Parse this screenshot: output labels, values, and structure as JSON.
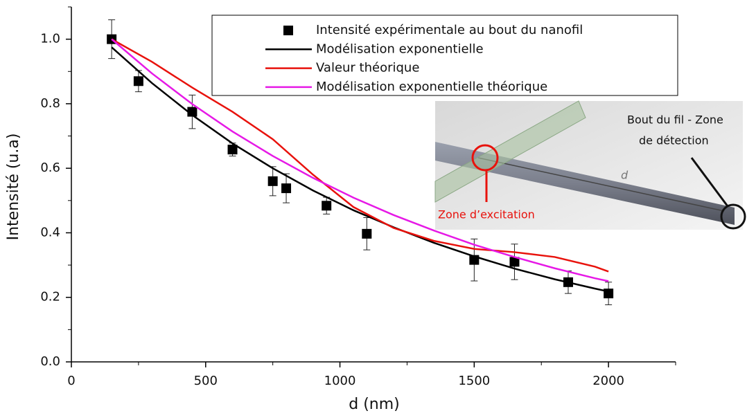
{
  "chart_data": {
    "type": "line",
    "x_label": "d (nm)",
    "y_label": "Intensité (u.a)",
    "xlim": [
      0,
      2250
    ],
    "xticks": [
      0,
      500,
      1000,
      1500,
      2000
    ],
    "xminorticks": [
      250,
      750,
      1250,
      1750,
      2250
    ],
    "ylim": [
      0,
      1.1
    ],
    "yticks": [
      {
        "value": 0,
        "label": "0.0"
      },
      0.2,
      0.4,
      0.6,
      0.8,
      {
        "value": 1,
        "label": "1.0"
      }
    ],
    "yminorticks": [
      0.1,
      0.3,
      0.5,
      0.7,
      0.9,
      1.1
    ],
    "legend": "top-right",
    "series": [
      {
        "name": "Intensité expérimentale au bout du nanofil",
        "type": "scatter",
        "color": "#000000",
        "x": [
          150,
          250,
          450,
          600,
          750,
          800,
          950,
          1100,
          1500,
          1650,
          1850,
          2000
        ],
        "values": [
          1.0,
          0.87,
          0.775,
          0.658,
          0.56,
          0.538,
          0.484,
          0.397,
          0.316,
          0.31,
          0.247,
          0.212
        ],
        "errors": [
          0.06,
          0.033,
          0.052,
          0.02,
          0.045,
          0.045,
          0.026,
          0.05,
          0.065,
          0.055,
          0.035,
          0.035
        ]
      },
      {
        "name": "Modélisation exponentielle",
        "type": "line",
        "color": "#000000",
        "x": [
          150,
          300,
          450,
          600,
          750,
          900,
          1050,
          1200,
          1350,
          1500,
          1650,
          1800,
          1950,
          2000
        ],
        "values": [
          0.975,
          0.864,
          0.765,
          0.677,
          0.6,
          0.531,
          0.47,
          0.417,
          0.369,
          0.327,
          0.289,
          0.256,
          0.227,
          0.218
        ]
      },
      {
        "name": "Valeur théorique",
        "type": "line",
        "color": "#e8120c",
        "x": [
          150,
          300,
          450,
          600,
          750,
          900,
          1050,
          1200,
          1350,
          1500,
          1650,
          1800,
          1950,
          2000
        ],
        "values": [
          1.0,
          0.93,
          0.85,
          0.775,
          0.69,
          0.58,
          0.48,
          0.415,
          0.375,
          0.35,
          0.34,
          0.325,
          0.295,
          0.28
        ]
      },
      {
        "name": "Modélisation exponentielle théorique",
        "type": "line",
        "color": "#e619e6",
        "x": [
          150,
          300,
          450,
          600,
          750,
          900,
          1050,
          1200,
          1350,
          1500,
          1650,
          1800,
          1950,
          2000
        ],
        "values": [
          1.0,
          0.894,
          0.799,
          0.714,
          0.638,
          0.57,
          0.509,
          0.455,
          0.407,
          0.363,
          0.325,
          0.29,
          0.259,
          0.25
        ]
      }
    ],
    "inset": {
      "detection_label": [
        "Bout du fil - Zone",
        "de détection"
      ],
      "distance_label": "d",
      "excitation_label": "Zone d’excitation"
    }
  }
}
